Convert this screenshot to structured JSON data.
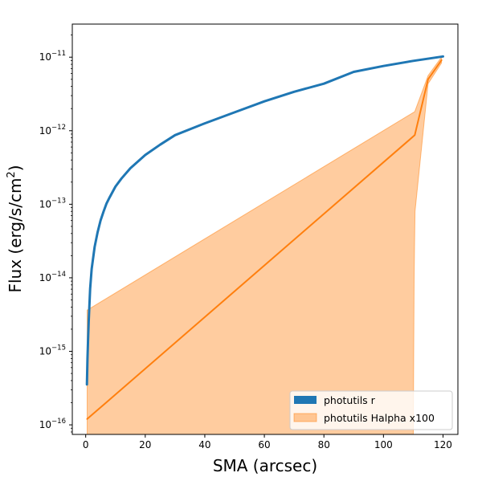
{
  "chart_data": {
    "type": "line",
    "title": "",
    "xlabel": "SMA (arcsec)",
    "ylabel_main": "Flux (erg/s/cm",
    "ylabel_sup": "2",
    "ylabel_tail": ")",
    "yscale": "log",
    "xlim": [
      -4.5,
      125
    ],
    "ylim_log10": [
      -16.13,
      -10.55
    ],
    "x_ticks": [
      0,
      20,
      40,
      60,
      80,
      100,
      120
    ],
    "y_ticks": [
      {
        "exp": -16,
        "base": "10",
        "sup": "−16"
      },
      {
        "exp": -15,
        "base": "10",
        "sup": "−15"
      },
      {
        "exp": -14,
        "base": "10",
        "sup": "−14"
      },
      {
        "exp": -13,
        "base": "10",
        "sup": "−13"
      },
      {
        "exp": -12,
        "base": "10",
        "sup": "−12"
      },
      {
        "exp": -11,
        "base": "10",
        "sup": "−11"
      }
    ],
    "series": [
      {
        "name": "photutils r",
        "color": "#1f77b4",
        "x": [
          0.4,
          0.6,
          0.8,
          1.0,
          1.5,
          2.0,
          3,
          4,
          5,
          6,
          7,
          8,
          10,
          12,
          15,
          20,
          25,
          30,
          40,
          50,
          60,
          70,
          80,
          90,
          100,
          110,
          120
        ],
        "log10_y": [
          -15.45,
          -15.1,
          -14.85,
          -14.6,
          -14.15,
          -13.88,
          -13.58,
          -13.38,
          -13.22,
          -13.1,
          -12.99,
          -12.91,
          -12.76,
          -12.65,
          -12.51,
          -12.33,
          -12.19,
          -12.06,
          -11.9,
          -11.75,
          -11.6,
          -11.47,
          -11.36,
          -11.2,
          -11.12,
          -11.05,
          -10.99
        ]
      },
      {
        "name": "photutils Halpha x100",
        "color": "#ff7f0e",
        "x": [
          0.5,
          110.5,
          115,
          119.5
        ],
        "log10_y": [
          -15.92,
          -12.06,
          -11.3,
          -11.04
        ],
        "band_upper_x": [
          0.5,
          110.5,
          115,
          119.5
        ],
        "band_upper_log10": [
          -14.44,
          -11.74,
          -11.25,
          -11.0
        ],
        "band_lower_x": [
          0.5,
          110.0,
          110.3,
          110.6,
          115,
          119.5
        ],
        "band_lower_log10": [
          -16.3,
          -16.3,
          -14.0,
          -13.1,
          -11.36,
          -11.08
        ]
      }
    ]
  }
}
